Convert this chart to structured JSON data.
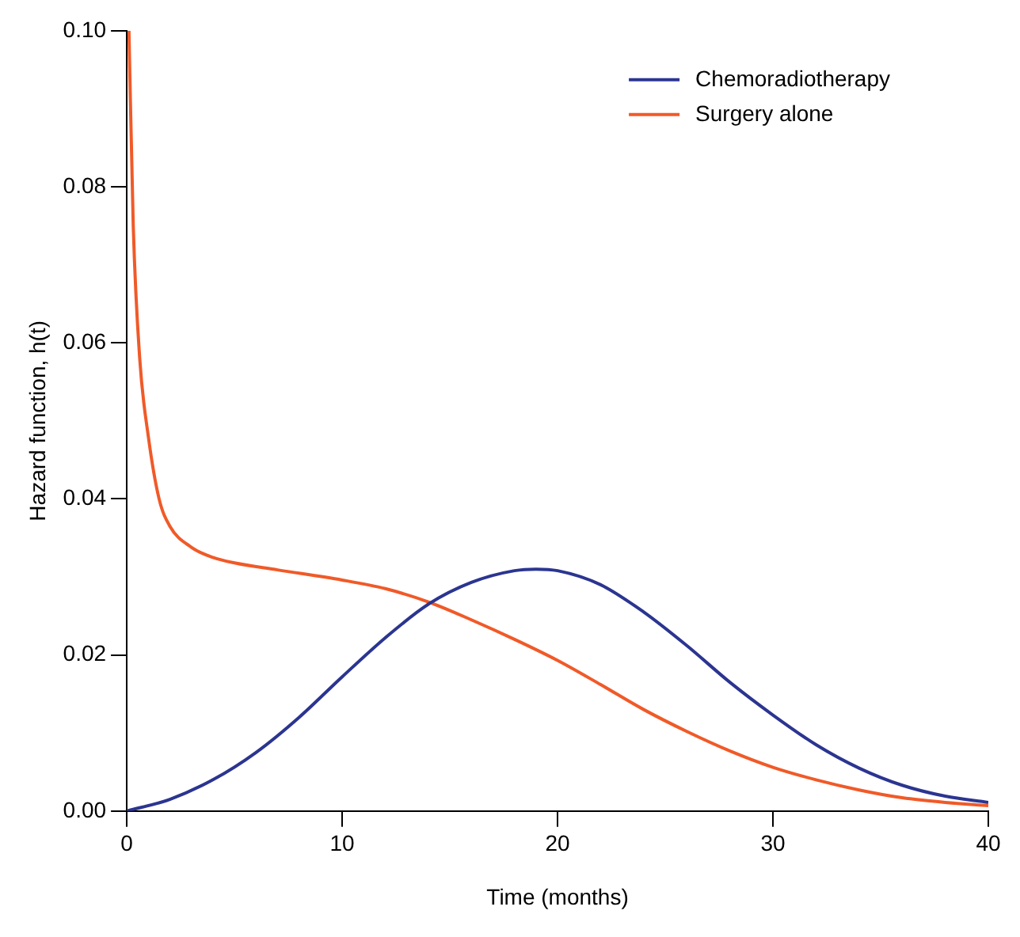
{
  "chart_data": {
    "type": "line",
    "xlabel": "Time (months)",
    "ylabel": "Hazard function, h(t)",
    "xlim": [
      0,
      40
    ],
    "xticks": [
      0,
      10,
      20,
      30,
      40
    ],
    "ylim": [
      0,
      0.1
    ],
    "yticks": [
      {
        "value": 0,
        "label": "0.00"
      },
      {
        "value": 0.02,
        "label": "0.02"
      },
      {
        "value": 0.04,
        "label": "0.04"
      },
      {
        "value": 0.06,
        "label": "0.06"
      },
      {
        "value": 0.08,
        "label": "0.08"
      },
      {
        "value": 0.1,
        "label": "0.10"
      }
    ],
    "grid": false,
    "legend": "top right",
    "marker": "none",
    "line_style": "solid",
    "series": [
      {
        "name": "Chemoradiotherapy",
        "color": "#2b3590",
        "x": [
          0,
          2,
          4,
          6,
          8,
          10,
          12,
          14,
          16,
          18,
          19,
          20,
          22,
          24,
          26,
          28,
          30,
          32,
          34,
          36,
          38,
          40
        ],
        "values": [
          0,
          0.0015,
          0.004,
          0.0075,
          0.012,
          0.0172,
          0.0222,
          0.0265,
          0.0293,
          0.0308,
          0.031,
          0.0308,
          0.029,
          0.0255,
          0.0212,
          0.0165,
          0.0123,
          0.0085,
          0.0055,
          0.0033,
          0.0019,
          0.0011
        ]
      },
      {
        "name": "Surgery alone",
        "color": "#f05a28",
        "x": [
          0.1,
          0.3,
          0.6,
          1,
          1.5,
          2,
          3,
          4,
          5,
          7,
          10,
          12,
          14,
          16,
          18,
          20,
          22,
          24,
          26,
          28,
          30,
          32,
          34,
          36,
          38,
          40
        ],
        "values": [
          0.1,
          0.075,
          0.058,
          0.048,
          0.04,
          0.0365,
          0.0338,
          0.0325,
          0.0318,
          0.0309,
          0.0296,
          0.0285,
          0.0268,
          0.0245,
          0.022,
          0.0193,
          0.0162,
          0.013,
          0.0102,
          0.0077,
          0.0056,
          0.004,
          0.0027,
          0.0017,
          0.0011,
          0.0007
        ]
      }
    ]
  }
}
